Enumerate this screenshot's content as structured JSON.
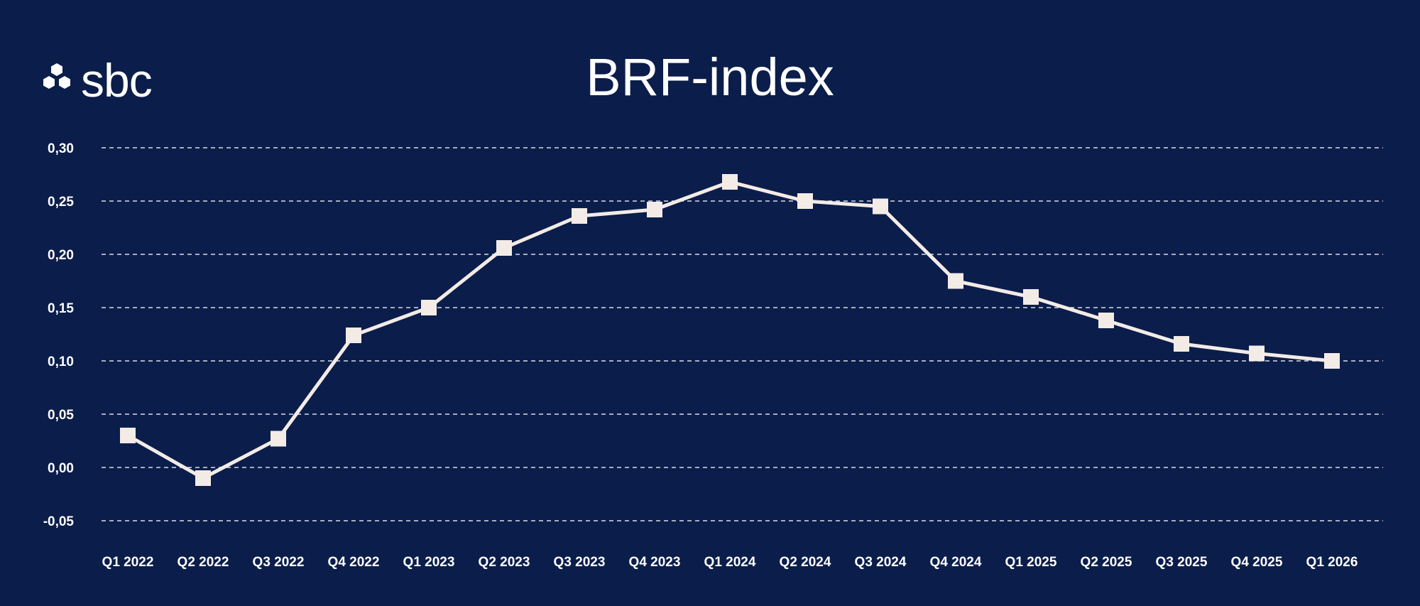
{
  "brand": {
    "name": "sbc",
    "logo_icon": "hexagon-cluster-icon"
  },
  "colors": {
    "background": "#0b1d4a",
    "line": "#f3ebe6",
    "grid": "#ffffff",
    "text": "#ffffff"
  },
  "chart_data": {
    "type": "line",
    "title": "BRF-index",
    "categories": [
      "Q1 2022",
      "Q2 2022",
      "Q3 2022",
      "Q4 2022",
      "Q1 2023",
      "Q2 2023",
      "Q3 2023",
      "Q4 2023",
      "Q1 2024",
      "Q2 2024",
      "Q3 2024",
      "Q4 2024",
      "Q1 2025",
      "Q2 2025",
      "Q3 2025",
      "Q4 2025",
      "Q1 2026"
    ],
    "series": [
      {
        "values": [
          0.03,
          -0.01,
          0.027,
          0.124,
          0.15,
          0.206,
          0.236,
          0.242,
          0.268,
          0.25,
          0.245,
          0.175,
          0.16,
          0.138,
          0.116,
          0.107,
          0.1
        ]
      }
    ],
    "yticks": [
      "0,30",
      "0,25",
      "0,20",
      "0,15",
      "0,10",
      "0,05",
      "0,00",
      "-0,05"
    ],
    "ytick_values": [
      0.3,
      0.25,
      0.2,
      0.15,
      0.1,
      0.05,
      0.0,
      -0.05
    ],
    "ylim": [
      -0.05,
      0.3
    ],
    "grid": "horizontal dashed",
    "legend": "none",
    "xlabel": "",
    "ylabel": ""
  }
}
